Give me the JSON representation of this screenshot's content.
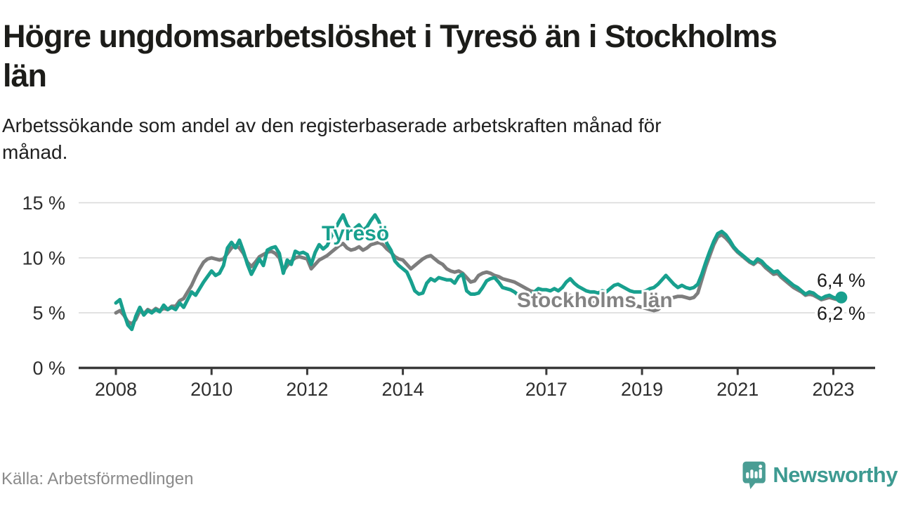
{
  "title": {
    "full": "Högre ungdomsarbetslöshet i Tyresö än i Stockholms län",
    "lines": [
      "Högre ungdomsarbetslöshet i Tyresö än i Stockholms",
      "län"
    ]
  },
  "subtitle": {
    "full": "Arbetssökande som andel av den registerbaserade arbetskraften månad för månad.",
    "lines": [
      "Arbetssökande som andel av den registerbaserade arbetskraften månad för",
      "månad."
    ]
  },
  "footer": {
    "source": "Källa: Arbetsförmedlingen"
  },
  "brand": {
    "name": "Newsworthy",
    "color": "#3d9a91",
    "icon": "speech-bubble-bar-chart"
  },
  "colors": {
    "tyreso": "#18a08e",
    "stockholm": "#7d7d7d",
    "gridline": "#d8d8d8",
    "axis": "#3a3a3a",
    "tick_label": "#2e2e2e",
    "end_label": "#1b1b1b"
  },
  "chart_data": {
    "type": "line",
    "unit": "%",
    "frequency": "monthly",
    "x_start": "2008-01",
    "x_end": "2023-03",
    "ylim": [
      0,
      15
    ],
    "grid": "horizontal",
    "y_ticks": [
      {
        "value": 0,
        "label": "0 %"
      },
      {
        "value": 5,
        "label": "5 %"
      },
      {
        "value": 10,
        "label": "10 %"
      },
      {
        "value": 15,
        "label": "15 %"
      }
    ],
    "x_tick_years": [
      2008,
      2010,
      2012,
      2014,
      2017,
      2019,
      2021,
      2023
    ],
    "series": [
      {
        "name": "Stockholms län",
        "color": "#7d7d7d",
        "values": [
          5.0,
          5.2,
          4.8,
          4.2,
          4.0,
          4.4,
          5.2,
          4.9,
          5.3,
          5.1,
          5.4,
          5.2,
          5.4,
          5.3,
          5.6,
          5.6,
          6.1,
          6.3,
          6.9,
          7.5,
          8.3,
          9.0,
          9.6,
          9.9,
          10.0,
          9.9,
          9.8,
          9.9,
          10.4,
          10.9,
          11.1,
          10.9,
          10.4,
          9.6,
          9.2,
          9.6,
          10.1,
          10.3,
          10.5,
          10.6,
          10.4,
          10.0,
          8.8,
          9.3,
          9.7,
          10.0,
          10.1,
          10.0,
          9.9,
          9.0,
          9.4,
          9.8,
          10.0,
          10.2,
          10.5,
          10.8,
          11.1,
          11.3,
          10.9,
          10.7,
          10.8,
          11.0,
          10.7,
          10.9,
          11.2,
          11.3,
          11.4,
          11.2,
          10.8,
          10.5,
          10.1,
          9.9,
          9.8,
          9.4,
          9.0,
          9.3,
          9.6,
          9.9,
          10.1,
          10.2,
          9.9,
          9.6,
          9.4,
          9.0,
          8.8,
          8.7,
          8.8,
          8.6,
          8.2,
          7.8,
          7.9,
          8.4,
          8.6,
          8.7,
          8.6,
          8.4,
          8.3,
          8.1,
          8.0,
          7.9,
          7.8,
          7.6,
          7.4,
          7.2,
          7.0,
          6.9,
          6.7,
          6.5,
          6.3,
          6.2,
          6.3,
          6.2,
          6.3,
          6.5,
          6.6,
          6.4,
          6.2,
          6.1,
          6.0,
          6.0,
          5.9,
          5.8,
          5.9,
          5.8,
          5.9,
          6.1,
          6.2,
          6.0,
          5.8,
          5.7,
          5.6,
          5.6,
          5.5,
          5.4,
          5.3,
          5.2,
          5.3,
          5.6,
          6.0,
          6.3,
          6.4,
          6.5,
          6.5,
          6.4,
          6.3,
          6.4,
          6.8,
          8.0,
          9.2,
          10.2,
          11.2,
          11.9,
          12.1,
          11.8,
          11.4,
          10.9,
          10.5,
          10.2,
          9.9,
          9.6,
          9.4,
          9.7,
          9.5,
          9.1,
          8.8,
          8.5,
          8.6,
          8.2,
          7.9,
          7.6,
          7.3,
          7.1,
          6.9,
          6.6,
          6.7,
          6.6,
          6.4,
          6.2,
          6.3,
          6.4,
          6.3,
          6.2,
          6.2
        ],
        "end_value_label": "6,2 %"
      },
      {
        "name": "Tyresö",
        "color": "#18a08e",
        "values": [
          5.9,
          6.2,
          5.0,
          3.9,
          3.5,
          4.7,
          5.5,
          4.8,
          5.2,
          5.0,
          5.3,
          5.1,
          5.7,
          5.3,
          5.5,
          5.3,
          5.9,
          5.5,
          6.2,
          6.9,
          6.6,
          7.2,
          7.8,
          8.3,
          8.8,
          8.4,
          8.6,
          9.3,
          10.9,
          11.4,
          10.9,
          11.6,
          10.6,
          9.4,
          8.5,
          9.2,
          9.9,
          9.3,
          10.7,
          10.9,
          11.0,
          10.4,
          8.6,
          9.8,
          9.4,
          10.6,
          10.4,
          10.5,
          10.3,
          9.4,
          10.5,
          11.2,
          10.8,
          11.1,
          11.9,
          12.6,
          13.3,
          13.9,
          13.0,
          12.5,
          12.7,
          13.0,
          12.5,
          12.8,
          13.4,
          13.9,
          13.3,
          12.2,
          11.3,
          10.7,
          9.7,
          9.3,
          9.0,
          8.7,
          7.9,
          7.0,
          6.7,
          6.8,
          7.7,
          8.1,
          7.9,
          8.2,
          8.1,
          8.0,
          8.0,
          7.7,
          8.3,
          8.5,
          7.0,
          6.7,
          6.7,
          6.8,
          7.3,
          7.9,
          8.1,
          8.2,
          7.8,
          7.3,
          7.2,
          7.1,
          6.9,
          6.6,
          6.3,
          6.3,
          6.6,
          6.9,
          7.2,
          7.1,
          7.1,
          7.0,
          7.2,
          7.0,
          7.3,
          7.8,
          8.1,
          7.7,
          7.4,
          7.2,
          7.0,
          6.9,
          6.9,
          6.8,
          7.0,
          6.9,
          7.2,
          7.5,
          7.6,
          7.4,
          7.2,
          7.0,
          6.9,
          6.9,
          6.9,
          7.0,
          7.2,
          7.3,
          7.6,
          8.0,
          8.4,
          8.0,
          7.6,
          7.3,
          7.5,
          7.3,
          7.2,
          7.3,
          7.6,
          8.5,
          9.6,
          10.6,
          11.5,
          12.2,
          12.4,
          12.1,
          11.6,
          11.0,
          10.6,
          10.3,
          10.0,
          9.7,
          9.5,
          9.9,
          9.7,
          9.3,
          9.0,
          8.7,
          8.8,
          8.4,
          8.1,
          7.8,
          7.5,
          7.3,
          7.0,
          6.7,
          6.9,
          6.8,
          6.5,
          6.3,
          6.5,
          6.6,
          6.4,
          6.3,
          6.4
        ],
        "end_value_label": "6,4 %",
        "end_dot": true
      }
    ],
    "series_labels_on_chart": [
      {
        "text": "Tyresö",
        "color": "#18a08e"
      },
      {
        "text": "Stockholms län",
        "color": "#828282"
      }
    ],
    "end_labels": [
      {
        "text": "6,4 %",
        "series": "Tyresö"
      },
      {
        "text": "6,2 %",
        "series": "Stockholms län"
      }
    ],
    "legend_position": "inline-labels",
    "title": "Högre ungdomsarbetslöshet i Tyresö än i Stockholms län",
    "xlabel": "",
    "ylabel": ""
  }
}
